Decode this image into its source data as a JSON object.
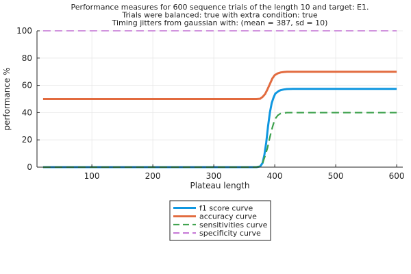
{
  "chart_data": {
    "type": "line",
    "title_lines": [
      "Performance measures for 600 sequence trials of the length 10 and target: E1.",
      "Trials were balanced: true with extra condition: true",
      "Timing jitters from gaussian with: (mean = 387, sd = 10)"
    ],
    "xlabel": "Plateau length",
    "ylabel": "performance %",
    "xlim": [
      10,
      610
    ],
    "ylim": [
      0,
      100
    ],
    "xticks": [
      100,
      200,
      300,
      400,
      500,
      600
    ],
    "yticks": [
      0,
      20,
      40,
      60,
      80,
      100
    ],
    "grid": true,
    "legend_position": "below plot, centered",
    "series": [
      {
        "name": "f1 score curve",
        "color": "#0f97e0",
        "dash": "solid",
        "x": [
          20,
          100,
          200,
          300,
          370,
          376,
          380,
          383,
          386,
          389,
          392,
          395,
          398,
          401,
          404,
          407,
          410,
          415,
          420,
          430,
          450,
          500,
          550,
          600
        ],
        "y": [
          0,
          0,
          0,
          0,
          0,
          0.5,
          3,
          9,
          18,
          30,
          40,
          47,
          51,
          54,
          55,
          56,
          56.5,
          57,
          57.3,
          57.4,
          57.4,
          57.4,
          57.4,
          57.4
        ]
      },
      {
        "name": "accuracy curve",
        "color": "#e26b3f",
        "dash": "solid",
        "x": [
          20,
          100,
          200,
          300,
          370,
          376,
          380,
          384,
          388,
          392,
          396,
          400,
          405,
          410,
          415,
          420,
          430,
          450,
          500,
          550,
          600
        ],
        "y": [
          50,
          50,
          50,
          50,
          50,
          50.2,
          51.5,
          53.5,
          57,
          61,
          65,
          67.5,
          68.8,
          69.5,
          69.8,
          70,
          70,
          70,
          70,
          70,
          70
        ]
      },
      {
        "name": "sensitivities curve",
        "color": "#3ba04b",
        "dash": "dashed",
        "x": [
          20,
          100,
          200,
          300,
          370,
          376,
          380,
          384,
          388,
          392,
          396,
          400,
          405,
          410,
          420,
          430,
          450,
          500,
          550,
          600
        ],
        "y": [
          0,
          0,
          0,
          0,
          0,
          0.5,
          3,
          8,
          14,
          22,
          29,
          35,
          38,
          39.5,
          40,
          40,
          40,
          40,
          40,
          40
        ]
      },
      {
        "name": "specificity curve",
        "color": "#c270d4",
        "dash": "dashed",
        "x": [
          20,
          600
        ],
        "y": [
          100,
          100
        ]
      }
    ]
  }
}
